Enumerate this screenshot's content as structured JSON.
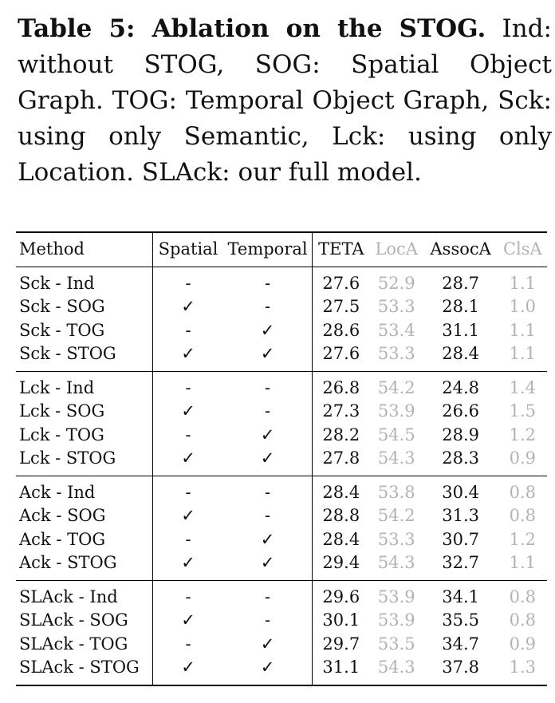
{
  "caption": {
    "lead": "Table 5: Ablation on the STOG.",
    "text": " Ind: without STOG, SOG: Spatial Object Graph. TOG: Temporal Object Graph, Sck: using only Semantic, Lck: using only Location. SLAck: our full model."
  },
  "table": {
    "headers": {
      "method": "Method",
      "spatial": "Spatial",
      "temporal": "Temporal",
      "teta": "TETA",
      "loca": "LocA",
      "assoca": "AssocA",
      "clsa": "ClsA"
    },
    "groups": [
      {
        "rows": [
          {
            "method": "Sck - Ind",
            "spatial": "-",
            "temporal": "-",
            "teta": "27.6",
            "loca": "52.9",
            "assoca": "28.7",
            "clsa": "1.1"
          },
          {
            "method": "Sck - SOG",
            "spatial": "✓",
            "temporal": "-",
            "teta": "27.5",
            "loca": "53.3",
            "assoca": "28.1",
            "clsa": "1.0"
          },
          {
            "method": "Sck - TOG",
            "spatial": "-",
            "temporal": "✓",
            "teta": "28.6",
            "loca": "53.4",
            "assoca": "31.1",
            "clsa": "1.1"
          },
          {
            "method": "Sck - STOG",
            "spatial": "✓",
            "temporal": "✓",
            "teta": "27.6",
            "loca": "53.3",
            "assoca": "28.4",
            "clsa": "1.1"
          }
        ]
      },
      {
        "rows": [
          {
            "method": "Lck - Ind",
            "spatial": "-",
            "temporal": "-",
            "teta": "26.8",
            "loca": "54.2",
            "assoca": "24.8",
            "clsa": "1.4"
          },
          {
            "method": "Lck - SOG",
            "spatial": "✓",
            "temporal": "-",
            "teta": "27.3",
            "loca": "53.9",
            "assoca": "26.6",
            "clsa": "1.5"
          },
          {
            "method": "Lck - TOG",
            "spatial": "-",
            "temporal": "✓",
            "teta": "28.2",
            "loca": "54.5",
            "assoca": "28.9",
            "clsa": "1.2"
          },
          {
            "method": "Lck - STOG",
            "spatial": "✓",
            "temporal": "✓",
            "teta": "27.8",
            "loca": "54.3",
            "assoca": "28.3",
            "clsa": "0.9"
          }
        ]
      },
      {
        "rows": [
          {
            "method": "Ack - Ind",
            "spatial": "-",
            "temporal": "-",
            "teta": "28.4",
            "loca": "53.8",
            "assoca": "30.4",
            "clsa": "0.8"
          },
          {
            "method": "Ack - SOG",
            "spatial": "✓",
            "temporal": "-",
            "teta": "28.8",
            "loca": "54.2",
            "assoca": "31.3",
            "clsa": "0.8"
          },
          {
            "method": "Ack - TOG",
            "spatial": "-",
            "temporal": "✓",
            "teta": "28.4",
            "loca": "53.3",
            "assoca": "30.7",
            "clsa": "1.2"
          },
          {
            "method": "Ack - STOG",
            "spatial": "✓",
            "temporal": "✓",
            "teta": "29.4",
            "loca": "54.3",
            "assoca": "32.7",
            "clsa": "1.1"
          }
        ]
      },
      {
        "rows": [
          {
            "method": "SLAck - Ind",
            "spatial": "-",
            "temporal": "-",
            "teta": "29.6",
            "loca": "53.9",
            "assoca": "34.1",
            "clsa": "0.8"
          },
          {
            "method": "SLAck - SOG",
            "spatial": "✓",
            "temporal": "-",
            "teta": "30.1",
            "loca": "53.9",
            "assoca": "35.5",
            "clsa": "0.8"
          },
          {
            "method": "SLAck - TOG",
            "spatial": "-",
            "temporal": "✓",
            "teta": "29.7",
            "loca": "53.5",
            "assoca": "34.7",
            "clsa": "0.9"
          },
          {
            "method": "SLAck - STOG",
            "spatial": "✓",
            "temporal": "✓",
            "teta": "31.1",
            "loca": "54.3",
            "assoca": "37.8",
            "clsa": "1.3"
          }
        ]
      }
    ]
  },
  "colors": {
    "text": "#111111",
    "muted_column": "#b3b3b3",
    "rules": "#000000"
  }
}
